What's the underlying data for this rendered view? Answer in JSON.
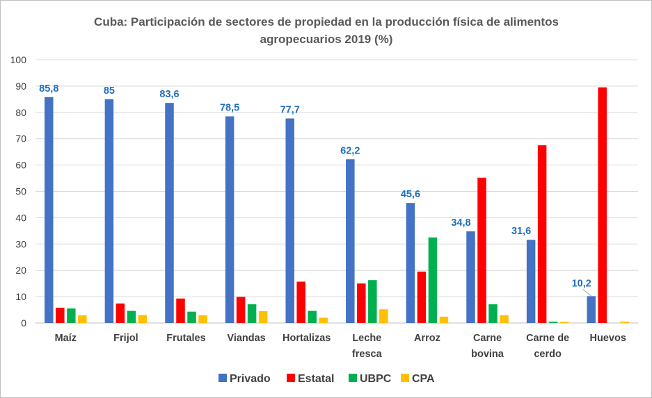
{
  "chart_data": {
    "type": "bar",
    "title": "Cuba: Participación de sectores de propiedad en la producción física de alimentos agropecuarios 2019 (%)",
    "title_lines": [
      "Cuba: Participación de sectores de propiedad en la producción física de alimentos",
      "agropecuarios 2019 (%)"
    ],
    "categories": [
      "Maíz",
      "Frijol",
      "Frutales",
      "Viandas",
      "Hortalizas",
      "Leche fresca",
      "Arroz",
      "Carne bovina",
      "Carne de cerdo",
      "Huevos"
    ],
    "category_lines": [
      [
        "Maíz"
      ],
      [
        "Frijol"
      ],
      [
        "Frutales"
      ],
      [
        "Viandas"
      ],
      [
        "Hortalizas"
      ],
      [
        "Leche",
        "fresca"
      ],
      [
        "Arroz"
      ],
      [
        "Carne",
        "bovina"
      ],
      [
        "Carne de",
        "cerdo"
      ],
      [
        "Huevos"
      ]
    ],
    "series": [
      {
        "name": "Privado",
        "color": "#4472c4",
        "values": [
          85.8,
          85,
          83.6,
          78.5,
          77.7,
          62.2,
          45.6,
          34.8,
          31.6,
          10.2
        ]
      },
      {
        "name": "Estatal",
        "color": "#ff0000",
        "values": [
          5.8,
          7.4,
          9.3,
          9.9,
          15.7,
          15,
          19.5,
          55.2,
          67.5,
          89.5
        ]
      },
      {
        "name": "UBPC",
        "color": "#00b050",
        "values": [
          5.5,
          4.6,
          4.3,
          7.1,
          4.6,
          16.3,
          32.5,
          7.1,
          0.5,
          0
        ]
      },
      {
        "name": "CPA",
        "color": "#ffc000",
        "values": [
          2.9,
          3.0,
          2.9,
          4.5,
          2.0,
          5.2,
          2.4,
          2.9,
          0.4,
          0.5
        ]
      }
    ],
    "data_labels": {
      "series": "Privado",
      "text": [
        "85,8",
        "85",
        "83,6",
        "78,5",
        "77,7",
        "62,2",
        "45,6",
        "34,8",
        "31,6",
        "10,2"
      ]
    },
    "ylim": [
      0,
      100
    ],
    "yticks": [
      0,
      10,
      20,
      30,
      40,
      50,
      60,
      70,
      80,
      90,
      100
    ],
    "xlabel": "",
    "ylabel": "",
    "grid": true,
    "legend_position": "bottom"
  }
}
